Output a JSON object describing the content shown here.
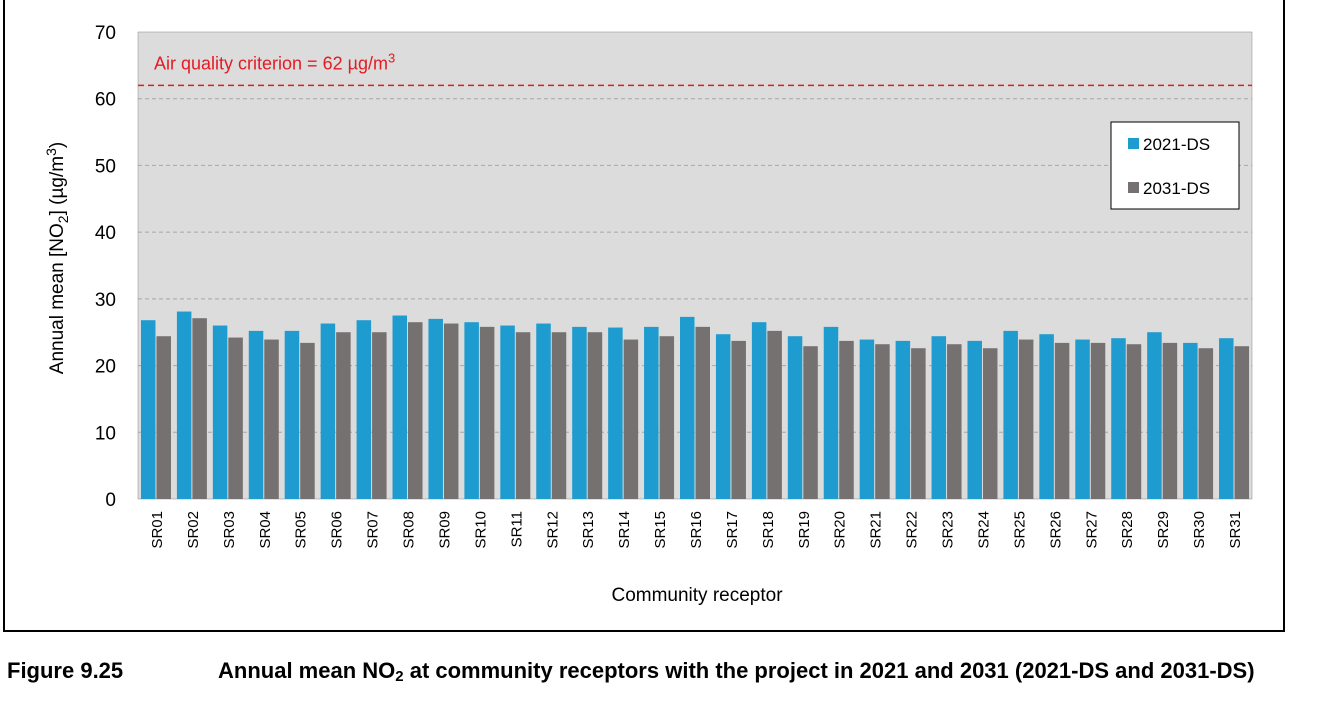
{
  "chart_data": {
    "type": "bar",
    "ylabel_pre": "Annual mean [NO",
    "ylabel_sub": "2",
    "ylabel_mid": "] (µg/m",
    "ylabel_sup": "3",
    "ylabel_post": ")",
    "xlabel": "Community receptor",
    "ylim": [
      0,
      70
    ],
    "yticks": [
      0,
      10,
      20,
      30,
      40,
      50,
      60,
      70
    ],
    "grid": true,
    "legend_position": "right",
    "categories": [
      "SR01",
      "SR02",
      "SR03",
      "SR04",
      "SR05",
      "SR06",
      "SR07",
      "SR08",
      "SR09",
      "SR10",
      "SR11",
      "SR12",
      "SR13",
      "SR14",
      "SR15",
      "SR16",
      "SR17",
      "SR18",
      "SR19",
      "SR20",
      "SR21",
      "SR22",
      "SR23",
      "SR24",
      "SR25",
      "SR26",
      "SR27",
      "SR28",
      "SR29",
      "SR30",
      "SR31"
    ],
    "series": [
      {
        "name": "2021-DS",
        "color": "#1E9BCF",
        "values": [
          26.8,
          28.1,
          26.0,
          25.2,
          25.2,
          26.3,
          26.8,
          27.5,
          27.0,
          26.5,
          26.0,
          26.3,
          25.8,
          25.7,
          25.8,
          27.3,
          24.7,
          26.5,
          24.4,
          25.8,
          23.9,
          23.7,
          24.4,
          23.7,
          25.2,
          24.7,
          23.9,
          24.1,
          25.0,
          23.4,
          24.1
        ]
      },
      {
        "name": "2031-DS",
        "color": "#767171",
        "values": [
          24.4,
          27.1,
          24.2,
          23.9,
          23.4,
          25.0,
          25.0,
          26.5,
          26.3,
          25.8,
          25.0,
          25.0,
          25.0,
          23.9,
          24.4,
          25.8,
          23.7,
          25.2,
          22.9,
          23.7,
          23.2,
          22.6,
          23.2,
          22.6,
          23.9,
          23.4,
          23.4,
          23.2,
          23.4,
          22.6,
          22.9
        ]
      }
    ],
    "reference_line": {
      "value": 62,
      "color": "#E31B23",
      "label_pre": "Air quality criterion = 62 µg/m",
      "label_sup": "3"
    },
    "plot_background": "#DCDCDC",
    "grid_color": "#A6A6A6"
  },
  "caption": {
    "figure_number": "Figure 9.25",
    "title_pre": "Annual mean NO",
    "title_sub": "2",
    "title_post": " at community receptors with the project in 2021 and 2031 (2021-DS and 2031-DS)"
  }
}
